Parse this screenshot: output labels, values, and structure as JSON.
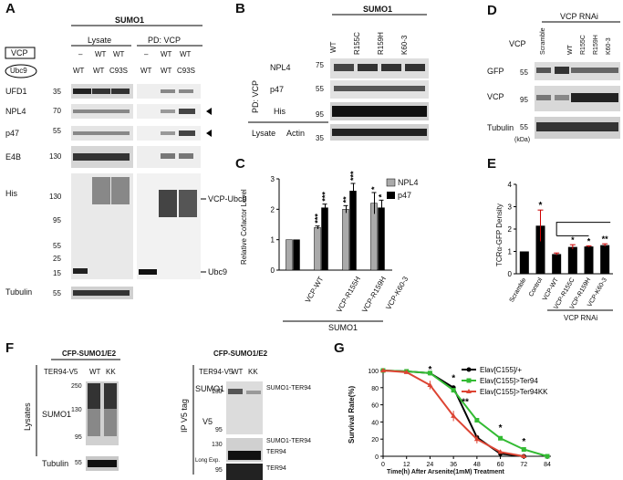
{
  "panels": {
    "a": "A",
    "b": "B",
    "c": "C",
    "d": "D",
    "e": "E",
    "f": "F",
    "g": "G"
  },
  "A": {
    "sumo": "SUMO1",
    "lysate": "Lysate",
    "pd": "PD: VCP",
    "vcp_label": "VCP",
    "ubc9_label": "Ubc9",
    "vcp_row": [
      "–",
      "WT",
      "WT",
      "–",
      "WT",
      "WT"
    ],
    "ubc9_row": [
      "WT",
      "WT",
      "C93S",
      "WT",
      "WT",
      "C93S"
    ],
    "rows": [
      "UFD1",
      "NPL4",
      "p47",
      "E4B",
      "His",
      "Tubulin"
    ],
    "mw": [
      "35",
      "70",
      "55",
      "130",
      "130",
      "95",
      "55",
      "25",
      "15",
      "55"
    ],
    "vcp_ubc9": "VCP-Ubc9",
    "ubc9": "Ubc9"
  },
  "B": {
    "sumo": "SUMO1",
    "cols": [
      "WT",
      "R155C",
      "R159H",
      "K60-3"
    ],
    "pd": "PD: VCP",
    "rows": [
      "NPL4",
      "p47",
      "His"
    ],
    "lysate": "Lysate",
    "actin": "Actin",
    "mw": [
      "75",
      "55",
      "95",
      "35"
    ]
  },
  "C": {
    "legend": [
      "NPL4",
      "p47"
    ],
    "sumo": "SUMO1",
    "stars": [
      "***",
      "***",
      "**",
      "***",
      "*",
      "*"
    ]
  },
  "D": {
    "title": "VCP RNAi",
    "scramble": "Scramble",
    "vcp": "VCP",
    "cols": [
      "WT",
      "R155C",
      "R159H",
      "K60-3"
    ],
    "rows": [
      "GFP",
      "VCP",
      "Tubulin"
    ],
    "mw": [
      "55",
      "95",
      "55"
    ],
    "kda": "(kDa)"
  },
  "E": {
    "xgroup": "VCP RNAi",
    "stars": [
      "*",
      "*",
      "*",
      "**"
    ]
  },
  "F": {
    "title1": "CFP-SUMO1/E2",
    "title2": "CFP-SUMO1/E2",
    "ter": "TER94-V5",
    "wt": "WT",
    "kk": "KK",
    "lysates": "Lysates",
    "ip": "IP V5 tag",
    "sumo1": "SUMO1",
    "tubulin": "Tubulin",
    "v5": "V5",
    "longexp": "Long Exp.",
    "sumo_ter": "SUMO1-TER94",
    "ter94": "TER94",
    "mw_left": [
      "250",
      "130",
      "95",
      "55"
    ],
    "mw_right": [
      "130",
      "95",
      "130",
      "95"
    ]
  },
  "G": {
    "stars": [
      "*",
      "*",
      "**",
      "*",
      "*"
    ]
  },
  "chart_data": [
    {
      "type": "bar",
      "ylabel": "Relative Cofactor Level",
      "categories": [
        "VCP-WT",
        "VCP-R155H",
        "VCP-R159H",
        "VCP-K60-3"
      ],
      "series": [
        {
          "name": "NPL4",
          "values": [
            1.0,
            1.4,
            2.0,
            2.2
          ],
          "errors": [
            0,
            0.05,
            0.12,
            0.35
          ],
          "color": "#aaaaaa"
        },
        {
          "name": "p47",
          "values": [
            1.0,
            2.05,
            2.6,
            2.05
          ],
          "errors": [
            0,
            0.12,
            0.25,
            0.25
          ],
          "color": "#000000"
        }
      ],
      "ylim": [
        0,
        3
      ],
      "yticks": [
        "0",
        "1",
        "2",
        "3"
      ]
    },
    {
      "type": "bar",
      "ylabel": "TCRα-GFP Density",
      "categories": [
        "Scramble",
        "Control",
        "VCP-WT",
        "VCP-R155C",
        "VCP-R159H",
        "VCP-K60-3"
      ],
      "values": [
        1.0,
        2.15,
        0.88,
        1.2,
        1.22,
        1.28
      ],
      "errors": [
        0,
        0.7,
        0.05,
        0.1,
        0.03,
        0.06
      ],
      "ylim": [
        0,
        4
      ],
      "yticks": [
        "0",
        "1",
        "2",
        "3",
        "4"
      ]
    },
    {
      "type": "line",
      "ylabel": "Survival Rate(%)",
      "xlabel": "Time(h) After Arsenite(1mM) Treatment",
      "x": [
        0,
        12,
        24,
        36,
        48,
        60,
        72,
        84
      ],
      "xticks": [
        "0",
        "12",
        "24",
        "36",
        "48",
        "60",
        "72",
        "84"
      ],
      "yticks": [
        "0",
        "20",
        "40",
        "60",
        "80",
        "100"
      ],
      "ylim": [
        0,
        100
      ],
      "xlim": [
        0,
        84
      ],
      "series": [
        {
          "name": "Elav[C155]/+",
          "color": "#000000",
          "values": [
            100,
            99,
            97,
            80,
            22,
            3,
            0,
            null
          ]
        },
        {
          "name": "Elav[C155]>Ter94",
          "color": "#33bb33",
          "values": [
            100,
            99,
            97,
            77,
            42,
            21,
            8,
            0
          ]
        },
        {
          "name": "Elav[C155]>Ter94KK",
          "color": "#dd4433",
          "values": [
            100,
            98,
            83,
            47,
            20,
            5,
            0,
            null
          ]
        }
      ]
    }
  ]
}
